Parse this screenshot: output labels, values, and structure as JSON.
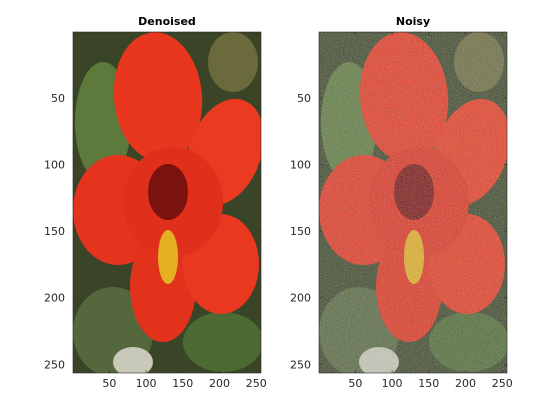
{
  "chart_data": [
    {
      "type": "image",
      "title": "Denoised",
      "xlim": [
        0.5,
        256.5
      ],
      "ylim": [
        0.5,
        256.5
      ],
      "y_reversed": true,
      "xticks": [
        50,
        100,
        150,
        200,
        250
      ],
      "yticks": [
        50,
        100,
        150,
        200,
        250
      ],
      "noisy": false
    },
    {
      "type": "image",
      "title": "Noisy",
      "xlim": [
        0.5,
        256.5
      ],
      "ylim": [
        0.5,
        256.5
      ],
      "y_reversed": true,
      "xticks": [
        50,
        100,
        150,
        200,
        250
      ],
      "yticks": [
        50,
        100,
        150,
        200,
        250
      ],
      "noisy": true
    }
  ]
}
